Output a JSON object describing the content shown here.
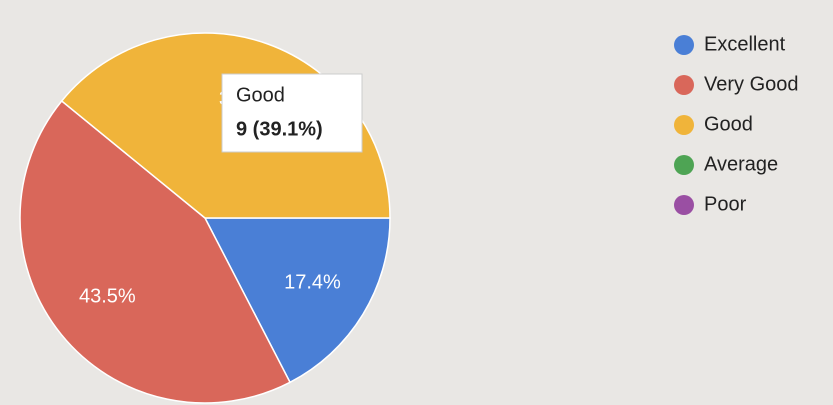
{
  "chart_data": {
    "type": "pie",
    "categories": [
      "Excellent",
      "Very Good",
      "Good",
      "Average",
      "Poor"
    ],
    "values": [
      17.4,
      43.5,
      39.1,
      0,
      0
    ],
    "value_labels": [
      "17.4%",
      "43.5%",
      "39.1%",
      null,
      null
    ],
    "colors": [
      "#4a7fd6",
      "#d9675a",
      "#f0b43a",
      "#4ea454",
      "#9a4fa3"
    ],
    "legend": "right",
    "tooltip": {
      "title": "Good",
      "text": "9 (39.1%)"
    }
  }
}
